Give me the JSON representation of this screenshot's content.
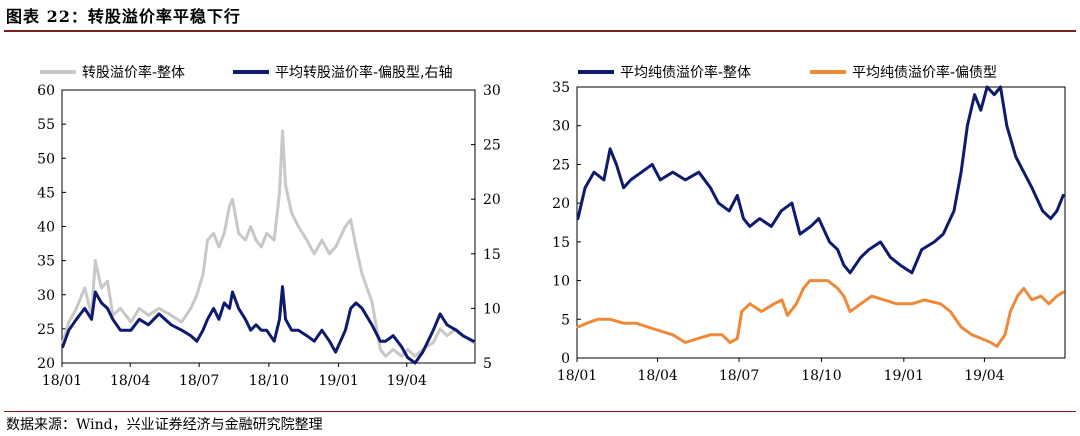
{
  "header": {
    "title": "图表 22：转股溢价率平稳下行"
  },
  "footer": {
    "source": "数据来源：Wind，兴业证券经济与金融研究院整理"
  },
  "chart_data": [
    {
      "type": "line",
      "x_ticks": [
        "18/01",
        "18/04",
        "18/07",
        "18/10",
        "19/01",
        "19/04"
      ],
      "x_range": [
        "2018-01-01",
        "2019-06-30"
      ],
      "ylim": [
        20,
        60
      ],
      "y_ticks": [
        20,
        25,
        30,
        35,
        40,
        45,
        50,
        55,
        60
      ],
      "y2lim": [
        5,
        30
      ],
      "y2_ticks": [
        5,
        10,
        15,
        20,
        25,
        30
      ],
      "legend": "top",
      "series": [
        {
          "name": "转股溢价率-整体",
          "axis": "left",
          "color": "#c8c8c8",
          "points": [
            [
              "2018-01-02",
              23
            ],
            [
              "2018-01-10",
              26
            ],
            [
              "2018-01-20",
              28
            ],
            [
              "2018-01-31",
              31
            ],
            [
              "2018-02-09",
              27
            ],
            [
              "2018-02-14",
              35
            ],
            [
              "2018-02-22",
              31
            ],
            [
              "2018-03-02",
              32
            ],
            [
              "2018-03-09",
              27
            ],
            [
              "2018-03-19",
              28
            ],
            [
              "2018-04-02",
              26
            ],
            [
              "2018-04-13",
              28
            ],
            [
              "2018-04-25",
              27
            ],
            [
              "2018-05-09",
              28
            ],
            [
              "2018-05-25",
              27
            ],
            [
              "2018-06-08",
              26
            ],
            [
              "2018-06-20",
              28
            ],
            [
              "2018-06-28",
              30
            ],
            [
              "2018-07-06",
              33
            ],
            [
              "2018-07-12",
              38
            ],
            [
              "2018-07-20",
              39
            ],
            [
              "2018-07-27",
              37
            ],
            [
              "2018-08-03",
              39
            ],
            [
              "2018-08-10",
              43
            ],
            [
              "2018-08-14",
              44
            ],
            [
              "2018-08-22",
              39
            ],
            [
              "2018-08-31",
              38
            ],
            [
              "2018-09-07",
              40
            ],
            [
              "2018-09-14",
              38
            ],
            [
              "2018-09-21",
              37
            ],
            [
              "2018-09-28",
              39
            ],
            [
              "2018-10-08",
              38
            ],
            [
              "2018-10-15",
              45
            ],
            [
              "2018-10-19",
              54
            ],
            [
              "2018-10-23",
              46
            ],
            [
              "2018-10-31",
              42
            ],
            [
              "2018-11-09",
              40
            ],
            [
              "2018-11-20",
              38
            ],
            [
              "2018-11-30",
              36
            ],
            [
              "2018-12-10",
              38
            ],
            [
              "2018-12-20",
              36
            ],
            [
              "2018-12-28",
              37
            ],
            [
              "2019-01-10",
              40
            ],
            [
              "2019-01-17",
              41
            ],
            [
              "2019-01-24",
              37
            ],
            [
              "2019-02-01",
              33
            ],
            [
              "2019-02-14",
              29
            ],
            [
              "2019-02-25",
              22
            ],
            [
              "2019-03-04",
              21
            ],
            [
              "2019-03-14",
              22
            ],
            [
              "2019-03-25",
              21
            ],
            [
              "2019-04-02",
              22
            ],
            [
              "2019-04-12",
              21
            ],
            [
              "2019-04-22",
              22
            ],
            [
              "2019-05-06",
              23
            ],
            [
              "2019-05-15",
              25
            ],
            [
              "2019-05-24",
              24
            ],
            [
              "2019-06-05",
              25
            ],
            [
              "2019-06-14",
              24
            ],
            [
              "2019-06-28",
              23
            ]
          ]
        },
        {
          "name": "平均转股溢价率-偏股型,右轴",
          "axis": "right",
          "color": "#0d1a6e",
          "points": [
            [
              "2018-01-02",
              6.5
            ],
            [
              "2018-01-10",
              8
            ],
            [
              "2018-01-20",
              9
            ],
            [
              "2018-01-31",
              10
            ],
            [
              "2018-02-09",
              9
            ],
            [
              "2018-02-14",
              11.5
            ],
            [
              "2018-02-22",
              10.5
            ],
            [
              "2018-03-02",
              10
            ],
            [
              "2018-03-09",
              9
            ],
            [
              "2018-03-19",
              8
            ],
            [
              "2018-04-02",
              8
            ],
            [
              "2018-04-13",
              9
            ],
            [
              "2018-04-25",
              8.5
            ],
            [
              "2018-05-09",
              9.5
            ],
            [
              "2018-05-25",
              8.5
            ],
            [
              "2018-06-08",
              8
            ],
            [
              "2018-06-20",
              7.5
            ],
            [
              "2018-06-28",
              7
            ],
            [
              "2018-07-06",
              8
            ],
            [
              "2018-07-12",
              9
            ],
            [
              "2018-07-20",
              10
            ],
            [
              "2018-07-27",
              9
            ],
            [
              "2018-08-03",
              10.5
            ],
            [
              "2018-08-10",
              10
            ],
            [
              "2018-08-14",
              11.5
            ],
            [
              "2018-08-22",
              10
            ],
            [
              "2018-08-31",
              9
            ],
            [
              "2018-09-07",
              8
            ],
            [
              "2018-09-14",
              8.5
            ],
            [
              "2018-09-21",
              8
            ],
            [
              "2018-09-28",
              8
            ],
            [
              "2018-10-08",
              7
            ],
            [
              "2018-10-15",
              9
            ],
            [
              "2018-10-19",
              12
            ],
            [
              "2018-10-23",
              9
            ],
            [
              "2018-10-31",
              8
            ],
            [
              "2018-11-09",
              8
            ],
            [
              "2018-11-20",
              7.5
            ],
            [
              "2018-11-30",
              7
            ],
            [
              "2018-12-10",
              8
            ],
            [
              "2018-12-20",
              7
            ],
            [
              "2018-12-28",
              6
            ],
            [
              "2019-01-10",
              8
            ],
            [
              "2019-01-17",
              10
            ],
            [
              "2019-01-24",
              10.5
            ],
            [
              "2019-02-01",
              10
            ],
            [
              "2019-02-14",
              8.5
            ],
            [
              "2019-02-25",
              7
            ],
            [
              "2019-03-04",
              7
            ],
            [
              "2019-03-14",
              7.5
            ],
            [
              "2019-03-25",
              6.5
            ],
            [
              "2019-04-02",
              5.5
            ],
            [
              "2019-04-12",
              5
            ],
            [
              "2019-04-22",
              6
            ],
            [
              "2019-05-06",
              8
            ],
            [
              "2019-05-15",
              9.5
            ],
            [
              "2019-05-24",
              8.5
            ],
            [
              "2019-06-05",
              8
            ],
            [
              "2019-06-14",
              7.5
            ],
            [
              "2019-06-28",
              7
            ]
          ]
        }
      ]
    },
    {
      "type": "line",
      "x_ticks": [
        "18/01",
        "18/04",
        "18/07",
        "18/10",
        "19/01",
        "19/04"
      ],
      "x_range": [
        "2018-01-01",
        "2019-06-30"
      ],
      "ylim": [
        0,
        35
      ],
      "y_ticks": [
        0,
        5,
        10,
        15,
        20,
        25,
        30,
        35
      ],
      "legend": "top",
      "series": [
        {
          "name": "平均纯债溢价率-整体",
          "color": "#0d1a6e",
          "points": [
            [
              "2018-01-02",
              18
            ],
            [
              "2018-01-10",
              22
            ],
            [
              "2018-01-20",
              24
            ],
            [
              "2018-01-31",
              23
            ],
            [
              "2018-02-07",
              27
            ],
            [
              "2018-02-14",
              25
            ],
            [
              "2018-02-22",
              22
            ],
            [
              "2018-03-02",
              23
            ],
            [
              "2018-03-14",
              24
            ],
            [
              "2018-03-26",
              25
            ],
            [
              "2018-04-04",
              23
            ],
            [
              "2018-04-18",
              24
            ],
            [
              "2018-05-02",
              23
            ],
            [
              "2018-05-17",
              24
            ],
            [
              "2018-05-30",
              22
            ],
            [
              "2018-06-08",
              20
            ],
            [
              "2018-06-20",
              19
            ],
            [
              "2018-06-29",
              21
            ],
            [
              "2018-07-06",
              18
            ],
            [
              "2018-07-13",
              17
            ],
            [
              "2018-07-24",
              18
            ],
            [
              "2018-08-06",
              17
            ],
            [
              "2018-08-17",
              19
            ],
            [
              "2018-08-29",
              20
            ],
            [
              "2018-09-07",
              16
            ],
            [
              "2018-09-19",
              17
            ],
            [
              "2018-09-28",
              18
            ],
            [
              "2018-10-10",
              15
            ],
            [
              "2018-10-19",
              14
            ],
            [
              "2018-10-26",
              12
            ],
            [
              "2018-11-02",
              11
            ],
            [
              "2018-11-14",
              13
            ],
            [
              "2018-11-23",
              14
            ],
            [
              "2018-12-06",
              15
            ],
            [
              "2018-12-17",
              13
            ],
            [
              "2018-12-28",
              12
            ],
            [
              "2019-01-10",
              11
            ],
            [
              "2019-01-21",
              14
            ],
            [
              "2019-02-04",
              15
            ],
            [
              "2019-02-14",
              16
            ],
            [
              "2019-02-26",
              19
            ],
            [
              "2019-03-06",
              24
            ],
            [
              "2019-03-13",
              30
            ],
            [
              "2019-03-21",
              34
            ],
            [
              "2019-03-28",
              32
            ],
            [
              "2019-04-04",
              35
            ],
            [
              "2019-04-12",
              34
            ],
            [
              "2019-04-19",
              35
            ],
            [
              "2019-04-26",
              30
            ],
            [
              "2019-05-06",
              26
            ],
            [
              "2019-05-15",
              24
            ],
            [
              "2019-05-24",
              22
            ],
            [
              "2019-06-05",
              19
            ],
            [
              "2019-06-14",
              18
            ],
            [
              "2019-06-21",
              19
            ],
            [
              "2019-06-28",
              21
            ]
          ]
        },
        {
          "name": "平均纯债溢价率-偏债型",
          "color": "#ed8a3a",
          "points": [
            [
              "2018-01-02",
              4
            ],
            [
              "2018-01-12",
              4.5
            ],
            [
              "2018-01-24",
              5
            ],
            [
              "2018-02-07",
              5
            ],
            [
              "2018-02-22",
              4.5
            ],
            [
              "2018-03-08",
              4.5
            ],
            [
              "2018-03-21",
              4
            ],
            [
              "2018-04-04",
              3.5
            ],
            [
              "2018-04-18",
              3
            ],
            [
              "2018-05-02",
              2
            ],
            [
              "2018-05-16",
              2.5
            ],
            [
              "2018-05-30",
              3
            ],
            [
              "2018-06-12",
              3
            ],
            [
              "2018-06-21",
              2
            ],
            [
              "2018-06-29",
              2.5
            ],
            [
              "2018-07-04",
              6
            ],
            [
              "2018-07-13",
              7
            ],
            [
              "2018-07-26",
              6
            ],
            [
              "2018-08-09",
              7
            ],
            [
              "2018-08-18",
              7.5
            ],
            [
              "2018-08-24",
              5.5
            ],
            [
              "2018-09-03",
              7
            ],
            [
              "2018-09-11",
              9
            ],
            [
              "2018-09-18",
              10
            ],
            [
              "2018-10-08",
              10
            ],
            [
              "2018-10-19",
              9
            ],
            [
              "2018-10-26",
              8
            ],
            [
              "2018-11-02",
              6
            ],
            [
              "2018-11-14",
              7
            ],
            [
              "2018-11-26",
              8
            ],
            [
              "2018-12-10",
              7.5
            ],
            [
              "2018-12-24",
              7
            ],
            [
              "2019-01-10",
              7
            ],
            [
              "2019-01-24",
              7.5
            ],
            [
              "2019-02-11",
              7
            ],
            [
              "2019-02-22",
              6
            ],
            [
              "2019-03-06",
              4
            ],
            [
              "2019-03-18",
              3
            ],
            [
              "2019-03-29",
              2.5
            ],
            [
              "2019-04-08",
              2
            ],
            [
              "2019-04-15",
              1.5
            ],
            [
              "2019-04-24",
              3
            ],
            [
              "2019-04-30",
              6
            ],
            [
              "2019-05-08",
              8
            ],
            [
              "2019-05-15",
              9
            ],
            [
              "2019-05-24",
              7.5
            ],
            [
              "2019-06-03",
              8
            ],
            [
              "2019-06-12",
              7
            ],
            [
              "2019-06-21",
              8
            ],
            [
              "2019-06-28",
              8.5
            ]
          ]
        }
      ]
    }
  ]
}
